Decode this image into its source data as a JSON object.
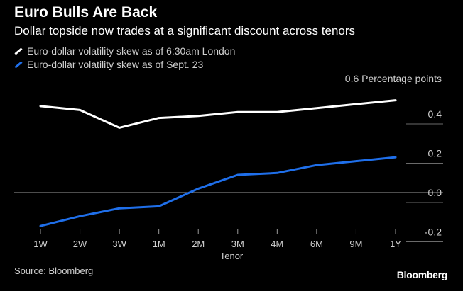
{
  "header": {
    "title": "Euro Bulls Are Back",
    "subtitle": "Dollar topside now trades at a significant discount across tenors"
  },
  "footer": {
    "source": "Source: Bloomberg",
    "brand": "Bloomberg"
  },
  "colors": {
    "background": "#000000",
    "series_white": "#ffffff",
    "series_blue": "#1f6fea",
    "text_muted": "#cfcfcf"
  },
  "chart_data": {
    "type": "line",
    "title": "Euro Bulls Are Back",
    "subtitle": "Dollar topside now trades at a significant discount across tenors",
    "xlabel": "Tenor",
    "ylabel": "0.6 Percentage points",
    "categories": [
      "1W",
      "2W",
      "3W",
      "1M",
      "2M",
      "3M",
      "4M",
      "6M",
      "9M",
      "1Y"
    ],
    "ylim": [
      -0.25,
      0.6
    ],
    "yticks": [
      -0.2,
      0.0,
      0.2,
      0.4
    ],
    "ytick_labels": [
      "-0.2",
      "0.0",
      "0.2",
      "0.4"
    ],
    "grid": false,
    "legend_position": "top-left",
    "series": [
      {
        "name": "Euro-dollar volatility skew as of 6:30am London",
        "color": "#ffffff",
        "values": [
          0.44,
          0.42,
          0.33,
          0.38,
          0.39,
          0.41,
          0.41,
          0.43,
          0.45,
          0.47
        ]
      },
      {
        "name": "Euro-dollar volatility skew as of Sept. 23",
        "color": "#1f6fea",
        "values": [
          -0.17,
          -0.12,
          -0.08,
          -0.07,
          0.02,
          0.09,
          0.1,
          0.14,
          0.16,
          0.18
        ]
      }
    ]
  }
}
